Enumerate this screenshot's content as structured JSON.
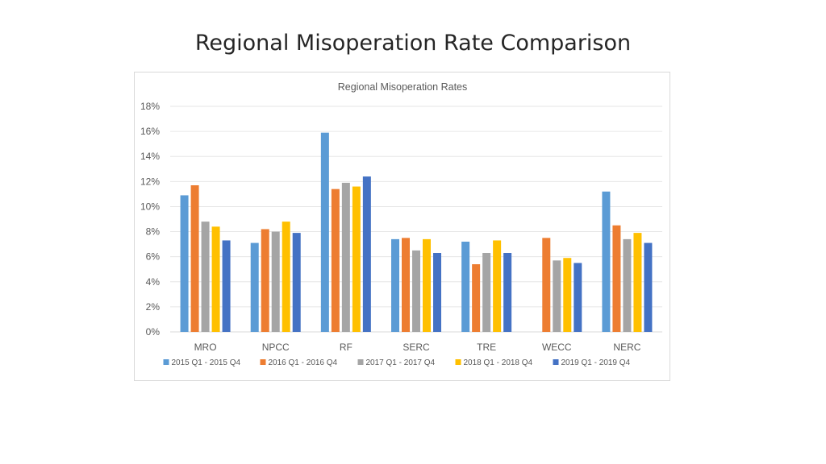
{
  "slide": {
    "title": "Regional Misoperation Rate Comparison"
  },
  "chart_data": {
    "type": "bar",
    "title": "Regional Misoperation Rates",
    "xlabel": "",
    "ylabel": "",
    "categories": [
      "MRO",
      "NPCC",
      "RF",
      "SERC",
      "TRE",
      "WECC",
      "NERC"
    ],
    "series": [
      {
        "name": "2015 Q1 - 2015 Q4",
        "color": "#5b9bd5",
        "values": [
          10.9,
          7.1,
          15.9,
          7.4,
          7.2,
          null,
          11.2
        ]
      },
      {
        "name": "2016 Q1 - 2016 Q4",
        "color": "#ed7d31",
        "values": [
          11.7,
          8.2,
          11.4,
          7.5,
          5.4,
          7.5,
          8.5
        ]
      },
      {
        "name": "2017 Q1 - 2017 Q4",
        "color": "#a5a5a5",
        "values": [
          8.8,
          8.0,
          11.9,
          6.5,
          6.3,
          5.7,
          7.4
        ]
      },
      {
        "name": "2018 Q1 - 2018 Q4",
        "color": "#ffc000",
        "values": [
          8.4,
          8.8,
          11.6,
          7.4,
          7.3,
          5.9,
          7.9
        ]
      },
      {
        "name": "2019 Q1 - 2019 Q4",
        "color": "#4472c4",
        "values": [
          7.3,
          7.9,
          12.4,
          6.3,
          6.3,
          5.5,
          7.1
        ]
      }
    ],
    "ylim": [
      0,
      18
    ],
    "yticks": [
      "0%",
      "2%",
      "4%",
      "6%",
      "8%",
      "10%",
      "12%",
      "14%",
      "16%",
      "18%"
    ],
    "ytick_values": [
      0,
      2,
      4,
      6,
      8,
      10,
      12,
      14,
      16,
      18
    ],
    "grid": true,
    "legend_position": "bottom"
  }
}
